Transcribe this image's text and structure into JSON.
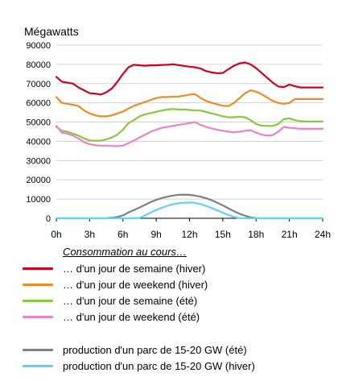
{
  "chart_data": {
    "type": "line",
    "ylabel": "Mégawatts",
    "ylim": [
      0,
      90000
    ],
    "yticks": [
      0,
      10000,
      20000,
      30000,
      40000,
      50000,
      60000,
      70000,
      80000,
      90000
    ],
    "ytick_labels": [
      "0",
      "10000",
      "20000",
      "30000",
      "40000",
      "50000",
      "60000",
      "70000",
      "80000",
      "90000"
    ],
    "xlim": [
      0,
      24
    ],
    "xticks": [
      0,
      3,
      6,
      9,
      12,
      15,
      18,
      21,
      24
    ],
    "xtick_labels": [
      "0h",
      "3h",
      "6h",
      "9h",
      "12h",
      "15h",
      "18h",
      "21h",
      "24h"
    ],
    "grid": true,
    "legend_title": "Consommation au cours…",
    "x": [
      0,
      0.5,
      1,
      1.5,
      2,
      2.5,
      3,
      3.5,
      4,
      4.5,
      5,
      5.5,
      6,
      6.5,
      7,
      7.5,
      8,
      8.5,
      9,
      9.5,
      10,
      10.5,
      11,
      11.5,
      12,
      12.5,
      13,
      13.5,
      14,
      14.5,
      15,
      15.5,
      16,
      16.5,
      17,
      17.5,
      18,
      18.5,
      19,
      19.5,
      20,
      20.5,
      21,
      21.5,
      22,
      22.5,
      23,
      23.5,
      24
    ],
    "series": [
      {
        "name": "… d'un jour de semaine (hiver)",
        "color": "#d0021b",
        "values": [
          73500,
          71000,
          70500,
          70000,
          68000,
          66500,
          65000,
          64800,
          64300,
          65500,
          67500,
          71000,
          75000,
          78500,
          79800,
          79500,
          79300,
          79500,
          79500,
          79700,
          79800,
          80100,
          79600,
          79200,
          78800,
          78500,
          77800,
          76500,
          75800,
          75400,
          75500,
          77500,
          79300,
          80500,
          81000,
          80000,
          78000,
          75500,
          73000,
          70500,
          68500,
          68200,
          69500,
          68600,
          68000,
          68000,
          68000,
          68000,
          68000
        ]
      },
      {
        "name": "… d'un jour de weekend (hiver)",
        "color": "#f08a24",
        "values": [
          63000,
          60000,
          59500,
          59000,
          58300,
          56000,
          54500,
          53500,
          53000,
          53000,
          53500,
          54500,
          55500,
          57000,
          58500,
          59500,
          60500,
          61500,
          62500,
          63000,
          63000,
          63200,
          63300,
          63700,
          64300,
          64500,
          62500,
          61000,
          60000,
          59200,
          58500,
          58300,
          60000,
          62500,
          65000,
          66500,
          65800,
          64500,
          62700,
          61000,
          60000,
          59500,
          60000,
          62000,
          62000,
          62000,
          62000,
          62000,
          62000
        ]
      },
      {
        "name": "… d'un jour de semaine (été)",
        "color": "#8cc63f",
        "values": [
          47500,
          45500,
          45000,
          44000,
          43000,
          41500,
          40500,
          40300,
          40400,
          41000,
          42000,
          43500,
          46000,
          49500,
          51000,
          53000,
          54000,
          54700,
          55300,
          56000,
          56500,
          56800,
          56500,
          56600,
          56300,
          56000,
          56000,
          55300,
          54500,
          53800,
          53000,
          52500,
          52500,
          52800,
          52500,
          51000,
          49000,
          48200,
          48000,
          48000,
          49000,
          51500,
          52000,
          51000,
          50500,
          50300,
          50300,
          50300,
          50300
        ]
      },
      {
        "name": "… d'un jour de weekend (été)",
        "color": "#f080c8",
        "values": [
          48000,
          44500,
          44000,
          43000,
          41500,
          39500,
          38500,
          38000,
          37700,
          37800,
          37600,
          37500,
          37800,
          39000,
          40500,
          42000,
          43500,
          45000,
          46000,
          47000,
          47500,
          48000,
          48500,
          49000,
          49500,
          50000,
          48500,
          47500,
          46700,
          46000,
          45500,
          45000,
          44800,
          45000,
          45500,
          45800,
          44500,
          43500,
          43000,
          43300,
          45000,
          47500,
          47000,
          46800,
          46500,
          46500,
          46500,
          46500,
          46500
        ]
      },
      {
        "name": "production d'un parc de 15-20 GW (été)",
        "color": "#7f7f7f",
        "values": [
          0,
          0,
          0,
          0,
          0,
          0,
          0,
          0,
          0,
          100,
          300,
          700,
          1500,
          3000,
          4300,
          5600,
          7000,
          8400,
          9600,
          10500,
          11200,
          11800,
          12200,
          12300,
          12200,
          11800,
          11200,
          10400,
          9400,
          8100,
          6700,
          5200,
          3700,
          2400,
          1300,
          500,
          100,
          0,
          0,
          0,
          0,
          0,
          0,
          0,
          0,
          0,
          0,
          0,
          0
        ]
      },
      {
        "name": "production d'un parc de 15-20 GW (hiver)",
        "color": "#5fd3f3",
        "values": [
          0,
          0,
          0,
          0,
          0,
          0,
          0,
          0,
          0,
          0,
          0,
          0,
          0,
          0,
          0,
          200,
          1500,
          3000,
          4300,
          5500,
          6500,
          7300,
          7800,
          8100,
          8200,
          8000,
          7400,
          6400,
          5300,
          4100,
          2900,
          1700,
          700,
          100,
          0,
          0,
          0,
          0,
          0,
          0,
          0,
          0,
          0,
          0,
          0,
          0,
          0,
          0,
          0
        ]
      }
    ]
  },
  "colors": {
    "grid": "#d0d0d0",
    "axis": "#000000",
    "background": "#ffffff"
  }
}
